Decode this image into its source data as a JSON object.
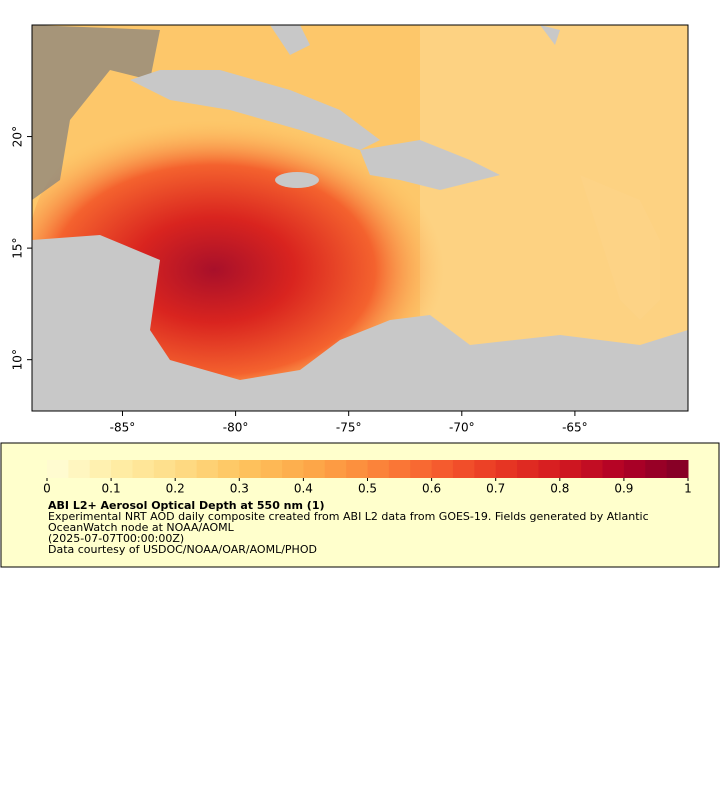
{
  "map": {
    "xlim": [
      -89,
      -60
    ],
    "ylim": [
      7.7,
      25
    ],
    "xticks": [
      {
        "value": -85,
        "label": "-85°"
      },
      {
        "value": -80,
        "label": "-80°"
      },
      {
        "value": -75,
        "label": "-75°"
      },
      {
        "value": -70,
        "label": "-70°"
      },
      {
        "value": -65,
        "label": "-65°"
      }
    ],
    "yticks": [
      {
        "value": 10,
        "label": "10°"
      },
      {
        "value": 15,
        "label": "15°"
      },
      {
        "value": 20,
        "label": "20°"
      }
    ]
  },
  "colorbar": {
    "lim": [
      0,
      1
    ],
    "ticks": [
      0,
      0.1,
      0.2,
      0.3,
      0.4,
      0.5,
      0.6,
      0.7,
      0.8,
      0.9,
      1
    ],
    "colors": [
      "#fffdd8",
      "#ffefa8",
      "#fedd88",
      "#fec560",
      "#fdab4a",
      "#fc8a3c",
      "#f76230",
      "#ea3a24",
      "#d41a20",
      "#b00026",
      "#800026"
    ]
  },
  "legend": {
    "title": "ABI L2+ Aerosol Optical Depth at 550 nm (1)",
    "description": "Experimental NRT AOD daily composite created from ABI L2 data from GOES-19. Fields generated by Atlantic OceanWatch node at NOAA/AOML",
    "date": "(2025-07-07T00:00:00Z)",
    "credit": "Data courtesy of USDOC/NOAA/OAR/AOML/PHOD"
  }
}
